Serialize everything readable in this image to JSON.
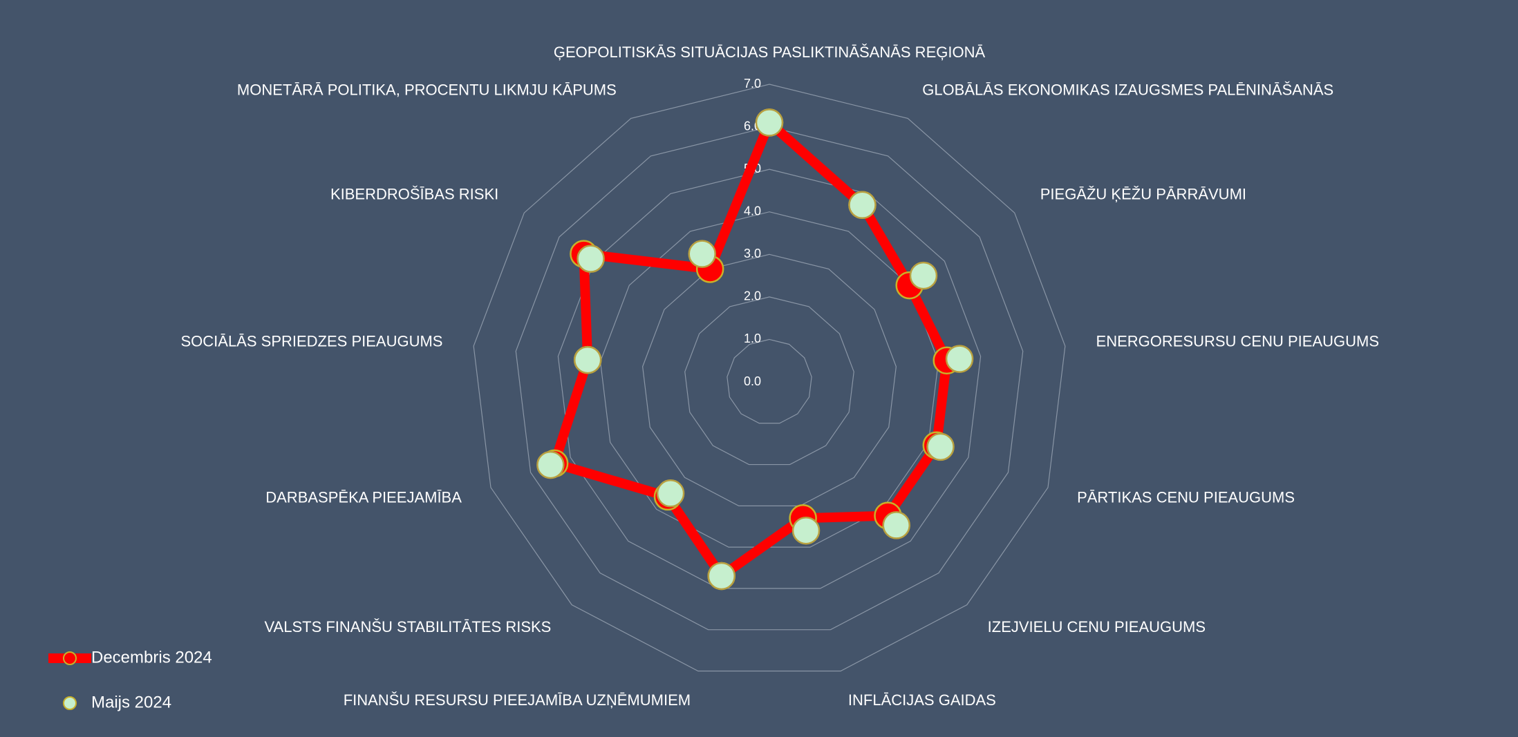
{
  "chart_data": {
    "type": "radar",
    "categories": [
      "ĢEOPOLITISKĀS SITUĀCIJAS PASLIKTINĀŠANĀS REĢIONĀ",
      "GLOBĀLĀS EKONOMIKAS IZAUGSMES PALĒNINĀŠANĀS",
      "PIEGĀŽU ĶĒŽU PĀRRĀVUMI",
      "ENERGORESURSU CENU PIEAUGUMS",
      "PĀRTIKAS CENU PIEAUGUMS",
      "IZEJVIELU CENU PIEAUGUMS",
      "INFLĀCIJAS GAIDAS",
      "FINANŠU RESURSU PIEEJAMĪBA UZŅĒMUMIEM",
      "VALSTS FINANŠU STABILITĀTES RISKS",
      "DARBASPĒKA PIEEJAMĪBA",
      "SOCIĀLĀS SPRIEDZES PIEAUGUMS",
      "KIBERDROŠĪBAS RISKI",
      "MONETĀRĀ POLITIKA, PROCENTU LIKMJU KĀPUMS"
    ],
    "series": [
      {
        "name": "Decembris 2024",
        "color": "#ff0000",
        "values": [
          6.1,
          4.7,
          4.0,
          4.2,
          4.2,
          4.2,
          3.3,
          4.7,
          3.6,
          5.4,
          4.3,
          5.3,
          3.0
        ]
      },
      {
        "name": "Maijs 2024",
        "color": "#c6efce",
        "values": [
          6.1,
          4.7,
          4.4,
          4.5,
          4.3,
          4.5,
          3.6,
          4.7,
          3.5,
          5.5,
          4.3,
          5.1,
          3.4
        ]
      }
    ],
    "ylim": [
      0,
      7
    ],
    "yticks": [
      {
        "value": 0,
        "label": "0.0"
      },
      {
        "value": 1,
        "label": "1.0"
      },
      {
        "value": 2,
        "label": "2.0"
      },
      {
        "value": 3,
        "label": "3.0"
      },
      {
        "value": 4,
        "label": "4.0"
      },
      {
        "value": 5,
        "label": "5.0"
      },
      {
        "value": 6,
        "label": "6.0"
      },
      {
        "value": 7,
        "label": "7.0"
      }
    ],
    "grid": true,
    "legend": "bottom-left"
  }
}
